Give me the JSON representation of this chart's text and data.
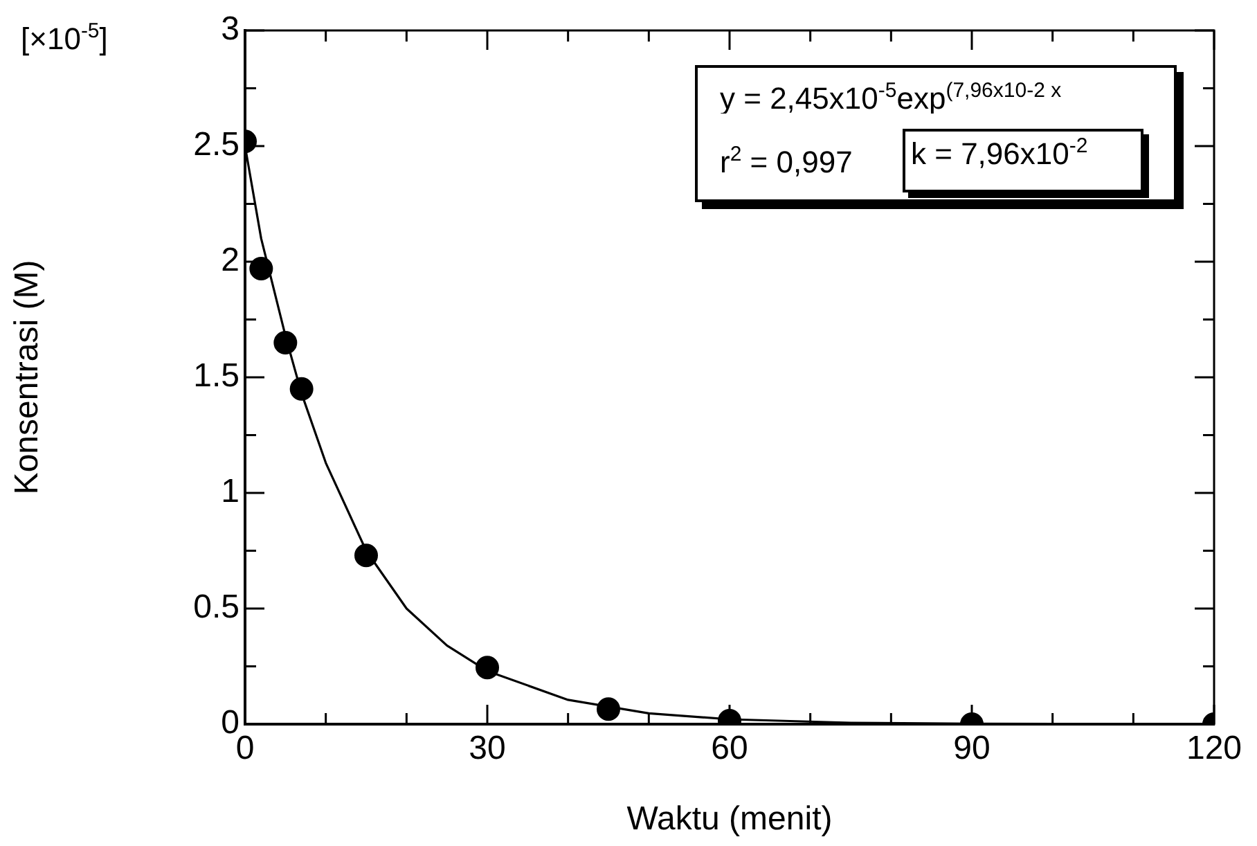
{
  "chart_data": {
    "type": "scatter",
    "xlabel": "Waktu (menit)",
    "ylabel": "Konsentrasi (M)",
    "annotations": [
      "y = 2,45x10$^{-5}$exp$^{(7,96x10-2 x}$",
      "r$^{2}$ = 0,997",
      "k = 7,96x10$^{-2}$",
      "[×10$^{-5}$]"
    ],
    "xlim": [
      0,
      120
    ],
    "ylim": [
      0,
      3
    ],
    "xticks": [
      0,
      {
        "value": 10,
        "label": null
      },
      {
        "value": 20,
        "label": null
      },
      30,
      {
        "value": 40,
        "label": null
      },
      {
        "value": 50,
        "label": null
      },
      60,
      {
        "value": 70,
        "label": null
      },
      {
        "value": 80,
        "label": null
      },
      90,
      {
        "value": 100,
        "label": null
      },
      {
        "value": 110,
        "label": null
      },
      120
    ],
    "yticks": [
      0,
      {
        "value": 0.25,
        "label": null
      },
      0.5,
      {
        "value": 0.75,
        "label": null
      },
      1,
      {
        "value": 1.25,
        "label": null
      },
      1.5,
      {
        "value": 1.75,
        "label": null
      },
      2,
      {
        "value": 2.25,
        "label": null
      },
      2.5,
      {
        "value": 2.75,
        "label": null
      },
      3
    ],
    "marker": "circle",
    "series": [
      {
        "type": "line",
        "color": "#000000",
        "marker": "none",
        "line_style": "solid",
        "x": [
          0,
          2,
          5,
          7,
          10,
          15,
          20,
          25,
          30,
          40,
          50,
          60,
          75,
          90,
          105,
          120
        ],
        "values": [
          2.5,
          2.1,
          1.68,
          1.43,
          1.13,
          0.75,
          0.5,
          0.34,
          0.23,
          0.105,
          0.047,
          0.021,
          0.006,
          0.002,
          0.001,
          0
        ]
      },
      {
        "color": "#000000",
        "x": [
          0,
          2,
          5,
          7,
          15,
          30,
          45,
          60,
          90,
          120
        ],
        "values": [
          2.52,
          1.97,
          1.65,
          1.45,
          0.73,
          0.245,
          0.065,
          0.015,
          0,
          0
        ]
      }
    ]
  }
}
